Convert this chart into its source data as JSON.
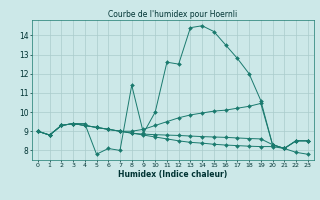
{
  "title": "Courbe de l'humidex pour Hoernli",
  "xlabel": "Humidex (Indice chaleur)",
  "bg_color": "#cce8e8",
  "grid_color": "#aacccc",
  "line_color": "#1a7a6e",
  "xlim": [
    -0.5,
    23.5
  ],
  "ylim": [
    7.5,
    14.8
  ],
  "xticks": [
    0,
    1,
    2,
    3,
    4,
    5,
    6,
    7,
    8,
    9,
    10,
    11,
    12,
    13,
    14,
    15,
    16,
    17,
    18,
    19,
    20,
    21,
    22,
    23
  ],
  "yticks": [
    8,
    9,
    10,
    11,
    12,
    13,
    14
  ],
  "series": [
    {
      "x": [
        0,
        1,
        2,
        3,
        4,
        5,
        6,
        7,
        8,
        9,
        10,
        11,
        12,
        13,
        14,
        15,
        16,
        17,
        18,
        19,
        20,
        21,
        22,
        23
      ],
      "y": [
        9.0,
        8.8,
        9.3,
        9.4,
        9.4,
        7.8,
        8.1,
        8.0,
        11.4,
        8.9,
        10.0,
        12.6,
        12.5,
        14.4,
        14.5,
        14.2,
        13.5,
        12.8,
        12.0,
        10.6,
        8.3,
        8.1,
        8.5,
        8.5
      ]
    },
    {
      "x": [
        0,
        1,
        2,
        3,
        4,
        5,
        6,
        7,
        8,
        9,
        10,
        11,
        12,
        13,
        14,
        15,
        16,
        17,
        18,
        19,
        20,
        21,
        22,
        23
      ],
      "y": [
        9.0,
        8.8,
        9.3,
        9.4,
        9.3,
        9.2,
        9.1,
        9.0,
        9.0,
        9.1,
        9.3,
        9.5,
        9.7,
        9.85,
        9.95,
        10.05,
        10.1,
        10.2,
        10.3,
        10.45,
        8.3,
        8.1,
        8.5,
        8.5
      ]
    },
    {
      "x": [
        0,
        1,
        2,
        3,
        4,
        5,
        6,
        7,
        8,
        9,
        10,
        11,
        12,
        13,
        14,
        15,
        16,
        17,
        18,
        19,
        20,
        21,
        22,
        23
      ],
      "y": [
        9.0,
        8.8,
        9.3,
        9.4,
        9.3,
        9.2,
        9.1,
        9.0,
        8.9,
        8.8,
        8.7,
        8.6,
        8.5,
        8.42,
        8.38,
        8.32,
        8.28,
        8.25,
        8.22,
        8.2,
        8.2,
        8.1,
        7.9,
        7.8
      ]
    },
    {
      "x": [
        0,
        1,
        2,
        3,
        4,
        5,
        6,
        7,
        8,
        9,
        10,
        11,
        12,
        13,
        14,
        15,
        16,
        17,
        18,
        19,
        20,
        21,
        22,
        23
      ],
      "y": [
        9.0,
        8.8,
        9.3,
        9.4,
        9.3,
        9.2,
        9.1,
        9.0,
        8.9,
        8.85,
        8.82,
        8.8,
        8.78,
        8.75,
        8.72,
        8.7,
        8.68,
        8.65,
        8.62,
        8.6,
        8.3,
        8.1,
        8.5,
        8.5
      ]
    }
  ]
}
